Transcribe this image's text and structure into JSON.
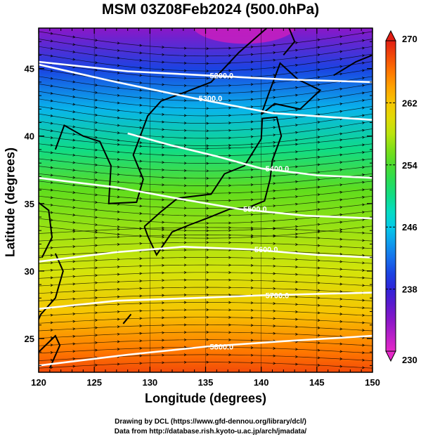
{
  "chart_data": {
    "type": "heatmap",
    "title": "MSM 03Z08Feb2024 (500.0hPa)",
    "xlabel": "Longitude (degrees)",
    "ylabel": "Latitude  (degrees)",
    "xlim": [
      120,
      150
    ],
    "ylim": [
      22.5,
      48
    ],
    "x_ticks": [
      120,
      125,
      130,
      135,
      140,
      145,
      150
    ],
    "y_ticks": [
      25,
      30,
      35,
      40,
      45
    ],
    "colorbar": {
      "min": 230,
      "max": 270,
      "ticks": [
        230,
        238,
        246,
        254,
        262,
        270
      ],
      "colormap": "rainbow (magenta-blue-cyan-green-yellow-orange-red)"
    },
    "temperature_field": {
      "description": "shaded temperature (K)",
      "gradient_by_latitude": [
        {
          "lat": 48,
          "value": 234
        },
        {
          "lat": 45,
          "value": 240
        },
        {
          "lat": 42,
          "value": 245
        },
        {
          "lat": 39,
          "value": 250
        },
        {
          "lat": 36,
          "value": 255
        },
        {
          "lat": 33,
          "value": 257
        },
        {
          "lat": 30,
          "value": 259
        },
        {
          "lat": 27,
          "value": 262
        },
        {
          "lat": 24,
          "value": 266
        },
        {
          "lat": 22.5,
          "value": 268
        }
      ]
    },
    "contours": [
      {
        "label": "5200.0",
        "points": [
          [
            120,
            45.5
          ],
          [
            128,
            44.8
          ],
          [
            135,
            44.5
          ],
          [
            142,
            44.2
          ],
          [
            150,
            44.0
          ]
        ]
      },
      {
        "label": "5300.0",
        "points": [
          [
            120,
            45.3
          ],
          [
            127,
            44.0
          ],
          [
            134,
            42.8
          ],
          [
            141,
            41.7
          ],
          [
            150,
            41.2
          ]
        ]
      },
      {
        "label": "5400.0",
        "points": [
          [
            128,
            40.2
          ],
          [
            132,
            39.3
          ],
          [
            136,
            38.5
          ],
          [
            140,
            37.6
          ],
          [
            145,
            37.1
          ],
          [
            150,
            36.9
          ]
        ]
      },
      {
        "label": "5500.0",
        "points": [
          [
            120,
            36.9
          ],
          [
            127,
            36.2
          ],
          [
            133,
            35.3
          ],
          [
            138,
            34.6
          ],
          [
            144,
            34.1
          ],
          [
            150,
            33.9
          ]
        ]
      },
      {
        "label": "5600.0",
        "points": [
          [
            120,
            30.7
          ],
          [
            127,
            31.4
          ],
          [
            133,
            31.8
          ],
          [
            139,
            31.6
          ],
          [
            145,
            31.2
          ],
          [
            150,
            31.0
          ]
        ]
      },
      {
        "label": "5700.0",
        "points": [
          [
            120,
            27.2
          ],
          [
            127,
            27.8
          ],
          [
            134,
            28.0
          ],
          [
            140,
            28.2
          ],
          [
            145,
            28.3
          ],
          [
            150,
            28.4
          ]
        ]
      },
      {
        "label": "5800.0",
        "points": [
          [
            120,
            23.0
          ],
          [
            128,
            23.8
          ],
          [
            135,
            24.4
          ],
          [
            142,
            24.8
          ],
          [
            150,
            25.2
          ]
        ]
      }
    ],
    "grid": true,
    "legend": "colorbar on right"
  },
  "credits": {
    "line1": "Drawing by DCL (https://www.gfd-dennou.org/library/dcl/)",
    "line2": "Data from http://database.rish.kyoto-u.ac.jp/arch/jmadata/"
  }
}
